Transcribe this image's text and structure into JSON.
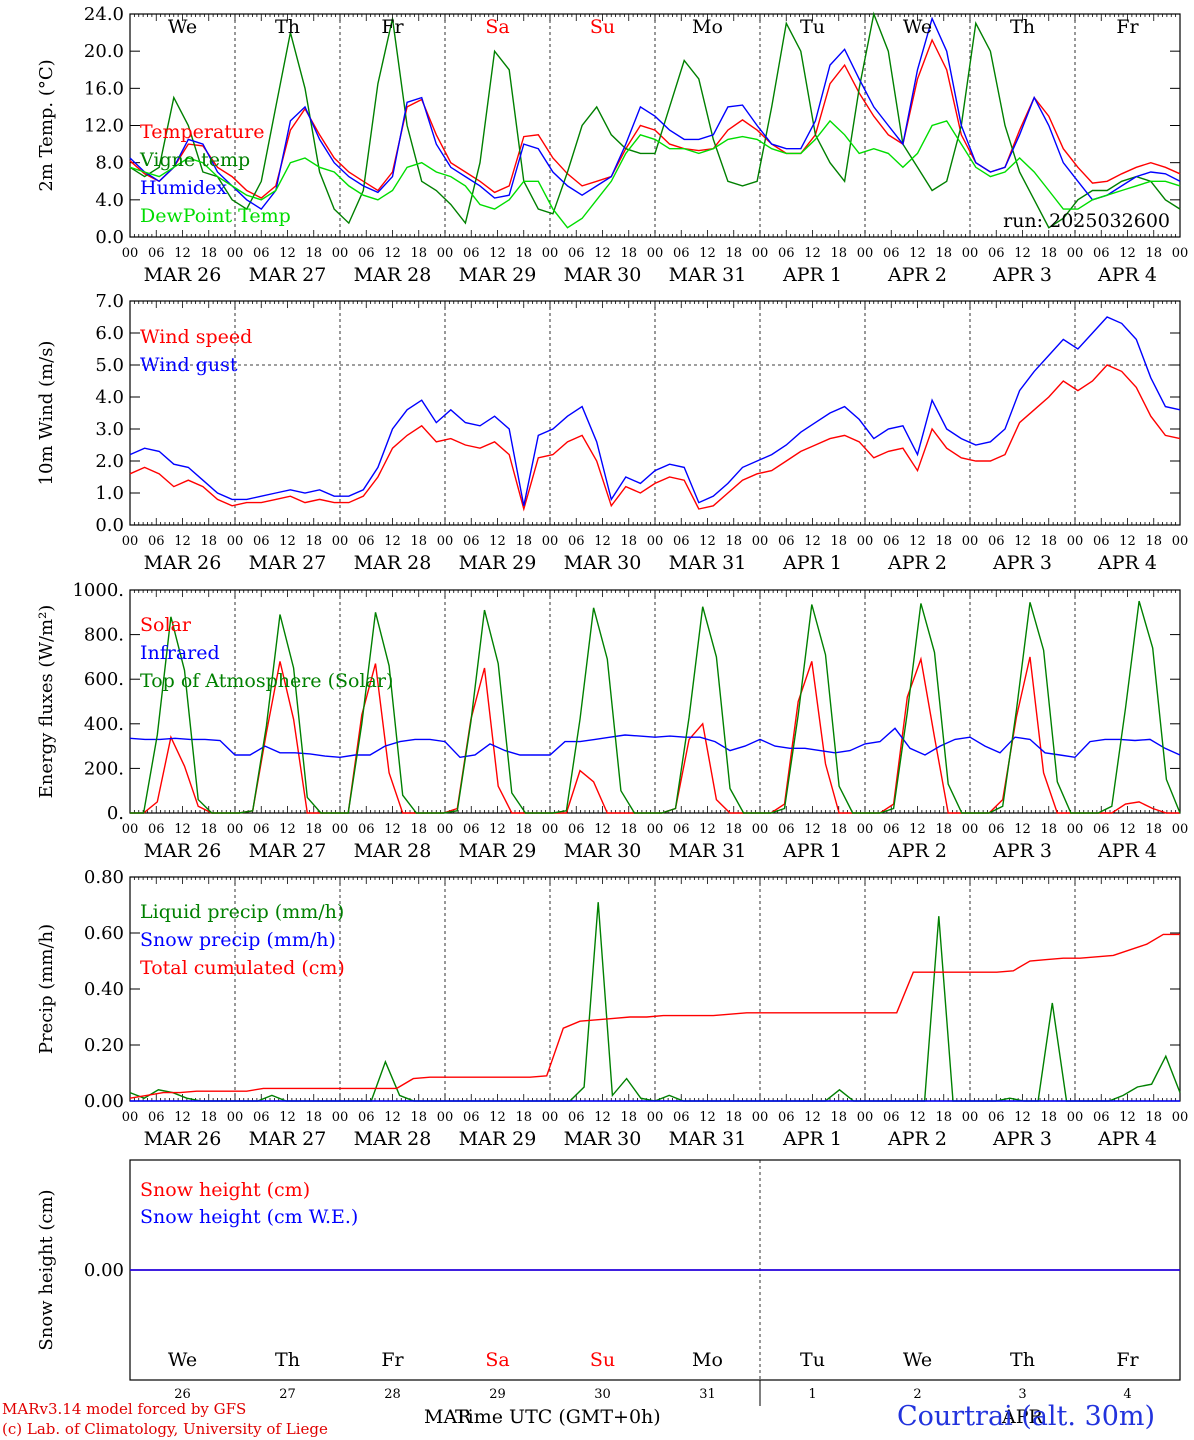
{
  "days": {
    "weekdays": [
      "We",
      "Th",
      "Fr",
      "Sa",
      "Su",
      "Mo",
      "Tu",
      "We",
      "Th",
      "Fr"
    ],
    "weekend_flags": [
      false,
      false,
      false,
      true,
      true,
      false,
      false,
      false,
      false,
      false
    ],
    "date_labels": [
      "MAR 26",
      "MAR 27",
      "MAR 28",
      "MAR 29",
      "MAR 30",
      "MAR 31",
      "APR  1",
      "APR  2",
      "APR  3",
      "APR  4"
    ],
    "day_numbers": [
      "26",
      "27",
      "28",
      "29",
      "30",
      "31",
      "1",
      "2",
      "3",
      "4"
    ],
    "hour_ticks": [
      "00",
      "06",
      "12",
      "18"
    ],
    "last_tick": "00"
  },
  "colors": {
    "red": "#ff0000",
    "blue": "#0000ff",
    "green": "#008000",
    "lightgreen": "#00dd00",
    "weekend": "#ff0000",
    "axis": "#000000",
    "station": "#2233dd"
  },
  "chart_data": [
    {
      "type": "line",
      "id": "temp",
      "ylabel": "2m Temp. (°C)",
      "ylim": [
        0,
        24
      ],
      "yticks": [
        "0.0",
        "4.0",
        "8.0",
        "12.0",
        "16.0",
        "20.0",
        "24.0"
      ],
      "x": "hour index since MAR 26 00 UTC, 3-hourly",
      "run_label": "run: 2025032600",
      "series": [
        {
          "name": "Temperature",
          "color": "red",
          "values": [
            8.2,
            6.8,
            6.0,
            7.5,
            10.0,
            9.8,
            7.5,
            6.5,
            5.0,
            4.2,
            5.5,
            11.5,
            13.8,
            11.0,
            8.5,
            7.0,
            6.0,
            5.0,
            7.0,
            14.0,
            14.8,
            11.0,
            8.0,
            7.0,
            6.0,
            4.8,
            5.5,
            10.8,
            11.0,
            8.5,
            6.8,
            5.5,
            6.0,
            6.5,
            9.5,
            12.0,
            11.5,
            10.0,
            9.5,
            9.3,
            9.5,
            11.5,
            12.6,
            11.5,
            10.0,
            9.0,
            9.0,
            11.0,
            16.5,
            18.5,
            15.5,
            13.0,
            11.0,
            10.0,
            17.0,
            21.2,
            18.0,
            11.0,
            8.0,
            7.0,
            7.5,
            11.5,
            15.0,
            13.0,
            9.5,
            7.5,
            5.8,
            6.0,
            6.8,
            7.5,
            8.0,
            7.5,
            6.8
          ]
        },
        {
          "name": "Vigne temp",
          "color": "green",
          "values": [
            7.5,
            6.5,
            7.5,
            15.0,
            12.0,
            7.0,
            6.5,
            4.0,
            3.0,
            6.0,
            14.0,
            22.0,
            16.0,
            7.0,
            3.0,
            1.5,
            5.0,
            16.5,
            23.5,
            12.0,
            6.0,
            5.0,
            3.5,
            1.5,
            8.0,
            20.0,
            18.0,
            6.0,
            3.0,
            2.5,
            7.0,
            12.0,
            14.0,
            11.0,
            9.5,
            9.0,
            9.0,
            14.0,
            19.0,
            17.0,
            10.5,
            6.0,
            5.5,
            6.0,
            14.0,
            23.0,
            20.0,
            11.0,
            8.0,
            6.0,
            16.0,
            24.0,
            20.0,
            10.0,
            7.5,
            5.0,
            6.0,
            12.0,
            23.0,
            20.0,
            12.0,
            7.0,
            4.0,
            1.0,
            2.0,
            4.0,
            5.0,
            5.0,
            6.0,
            6.5,
            6.0,
            4.0,
            3.0
          ]
        },
        {
          "name": "Humidex",
          "color": "blue",
          "values": [
            8.5,
            7.0,
            6.0,
            7.5,
            10.5,
            10.0,
            7.0,
            5.5,
            4.0,
            3.0,
            5.0,
            12.5,
            14.0,
            10.5,
            8.0,
            6.5,
            5.5,
            4.8,
            6.5,
            14.5,
            15.0,
            10.0,
            7.5,
            6.5,
            5.5,
            4.2,
            4.5,
            10.0,
            9.5,
            7.0,
            5.5,
            4.5,
            5.5,
            6.5,
            10.0,
            14.0,
            13.0,
            11.5,
            10.5,
            10.5,
            11.0,
            14.0,
            14.2,
            12.0,
            10.0,
            9.5,
            9.5,
            12.5,
            18.5,
            20.2,
            17.0,
            14.0,
            12.0,
            10.0,
            18.0,
            23.5,
            20.0,
            12.0,
            8.0,
            7.0,
            7.5,
            11.0,
            15.0,
            12.0,
            8.0,
            6.0,
            4.0,
            4.5,
            5.5,
            6.5,
            7.0,
            6.8,
            6.0
          ]
        },
        {
          "name": "DewPoint Temp",
          "color": "lightgreen",
          "values": [
            7.5,
            7.0,
            6.5,
            7.5,
            8.5,
            8.0,
            6.5,
            5.5,
            4.5,
            4.0,
            5.0,
            8.0,
            8.5,
            7.5,
            7.0,
            5.5,
            4.5,
            4.0,
            5.0,
            7.5,
            8.0,
            7.0,
            6.5,
            5.5,
            3.5,
            3.0,
            4.0,
            6.0,
            6.0,
            3.0,
            1.0,
            2.0,
            4.0,
            6.0,
            9.0,
            11.0,
            10.5,
            9.5,
            9.5,
            9.0,
            9.5,
            10.5,
            10.8,
            10.5,
            9.5,
            9.0,
            9.0,
            10.5,
            12.5,
            11.0,
            9.0,
            9.5,
            9.0,
            7.5,
            9.0,
            12.0,
            12.5,
            10.0,
            7.5,
            6.5,
            7.0,
            8.5,
            7.0,
            5.0,
            3.0,
            3.0,
            4.0,
            4.5,
            5.0,
            5.5,
            6.0,
            6.0,
            5.5
          ]
        }
      ]
    },
    {
      "type": "line",
      "id": "wind",
      "ylabel": "10m Wind (m/s)",
      "ylim": [
        0,
        7
      ],
      "yticks": [
        "0.0",
        "1.0",
        "2.0",
        "3.0",
        "4.0",
        "5.0",
        "6.0",
        "7.0"
      ],
      "ref_line": 5.0,
      "series": [
        {
          "name": "Wind speed",
          "color": "red",
          "values": [
            1.6,
            1.8,
            1.6,
            1.2,
            1.4,
            1.2,
            0.8,
            0.6,
            0.7,
            0.7,
            0.8,
            0.9,
            0.7,
            0.8,
            0.7,
            0.7,
            0.9,
            1.5,
            2.4,
            2.8,
            3.1,
            2.6,
            2.7,
            2.5,
            2.4,
            2.6,
            2.2,
            0.5,
            2.1,
            2.2,
            2.6,
            2.8,
            2.0,
            0.6,
            1.2,
            1.0,
            1.3,
            1.5,
            1.4,
            0.5,
            0.6,
            1.0,
            1.4,
            1.6,
            1.7,
            2.0,
            2.3,
            2.5,
            2.7,
            2.8,
            2.6,
            2.1,
            2.3,
            2.4,
            1.7,
            3.0,
            2.4,
            2.1,
            2.0,
            2.0,
            2.2,
            3.2,
            3.6,
            4.0,
            4.5,
            4.2,
            4.5,
            5.0,
            4.8,
            4.3,
            3.4,
            2.8,
            2.7
          ]
        },
        {
          "name": "Wind gust",
          "color": "blue",
          "values": [
            2.2,
            2.4,
            2.3,
            1.9,
            1.8,
            1.4,
            1.0,
            0.8,
            0.8,
            0.9,
            1.0,
            1.1,
            1.0,
            1.1,
            0.9,
            0.9,
            1.1,
            1.8,
            3.0,
            3.6,
            3.9,
            3.2,
            3.6,
            3.2,
            3.1,
            3.4,
            3.0,
            0.6,
            2.8,
            3.0,
            3.4,
            3.7,
            2.6,
            0.8,
            1.5,
            1.3,
            1.7,
            1.9,
            1.8,
            0.7,
            0.9,
            1.3,
            1.8,
            2.0,
            2.2,
            2.5,
            2.9,
            3.2,
            3.5,
            3.7,
            3.3,
            2.7,
            3.0,
            3.1,
            2.2,
            3.9,
            3.0,
            2.7,
            2.5,
            2.6,
            3.0,
            4.2,
            4.8,
            5.3,
            5.8,
            5.5,
            6.0,
            6.5,
            6.3,
            5.8,
            4.6,
            3.7,
            3.6
          ]
        }
      ]
    },
    {
      "type": "line",
      "id": "energy",
      "ylabel": "Energy fluxes (W/m²)",
      "ylim": [
        0,
        1000
      ],
      "yticks": [
        "0.",
        "200.",
        "400.",
        "600.",
        "800.",
        "1000."
      ],
      "series": [
        {
          "name": "Solar",
          "color": "red",
          "values": [
            0,
            0,
            50,
            340,
            210,
            30,
            0,
            0,
            0,
            10,
            360,
            680,
            420,
            0,
            0,
            0,
            0,
            440,
            670,
            180,
            0,
            0,
            0,
            0,
            20,
            420,
            650,
            120,
            0,
            0,
            0,
            0,
            0,
            190,
            140,
            0,
            0,
            0,
            0,
            0,
            20,
            330,
            400,
            60,
            0,
            0,
            0,
            0,
            40,
            500,
            680,
            220,
            0,
            0,
            0,
            0,
            40,
            520,
            690,
            340,
            0,
            0,
            0,
            0,
            60,
            430,
            700,
            180,
            0,
            0,
            0,
            0,
            0,
            40,
            50,
            20,
            0,
            0
          ]
        },
        {
          "name": "Infrared",
          "color": "blue",
          "values": [
            335,
            330,
            330,
            335,
            330,
            330,
            325,
            260,
            260,
            300,
            270,
            270,
            265,
            255,
            250,
            260,
            260,
            300,
            320,
            330,
            330,
            320,
            250,
            260,
            310,
            280,
            260,
            260,
            260,
            320,
            320,
            330,
            340,
            350,
            345,
            340,
            345,
            340,
            340,
            320,
            280,
            300,
            330,
            300,
            290,
            290,
            280,
            270,
            280,
            310,
            320,
            380,
            290,
            260,
            300,
            330,
            340,
            300,
            270,
            340,
            330,
            270,
            260,
            250,
            320,
            330,
            330,
            325,
            330,
            290,
            260
          ]
        },
        {
          "name": "Top of Atmosphere (Solar)",
          "color": "green",
          "values": [
            0,
            0,
            350,
            880,
            640,
            60,
            0,
            0,
            0,
            10,
            390,
            890,
            650,
            70,
            0,
            0,
            0,
            400,
            900,
            660,
            80,
            0,
            0,
            0,
            10,
            410,
            910,
            670,
            90,
            0,
            0,
            0,
            10,
            420,
            920,
            690,
            100,
            0,
            0,
            0,
            20,
            430,
            925,
            700,
            110,
            0,
            0,
            0,
            20,
            440,
            935,
            710,
            120,
            0,
            0,
            0,
            20,
            450,
            940,
            720,
            130,
            0,
            0,
            0,
            30,
            460,
            945,
            730,
            140,
            0,
            0,
            0,
            30,
            470,
            950,
            740,
            150,
            0
          ]
        }
      ]
    },
    {
      "type": "line",
      "id": "precip",
      "ylabel": "Precip (mm/h)",
      "ylim": [
        0,
        0.8
      ],
      "yticks": [
        "0.00",
        "0.20",
        "0.40",
        "0.60",
        "0.80"
      ],
      "series": [
        {
          "name": "Liquid precip (mm/h)",
          "color": "green",
          "values": [
            0.03,
            0.01,
            0.04,
            0.03,
            0.01,
            0.0,
            0.0,
            0.0,
            0.0,
            0.0,
            0.02,
            0.0,
            0.0,
            0.0,
            0.0,
            0.0,
            0.0,
            0.0,
            0.14,
            0.02,
            0.0,
            0.0,
            0.0,
            0.0,
            0.0,
            0.0,
            0.0,
            0.0,
            0.0,
            0.0,
            0.0,
            0.0,
            0.05,
            0.71,
            0.02,
            0.08,
            0.01,
            0.0,
            0.02,
            0.0,
            0.0,
            0.0,
            0.0,
            0.0,
            0.0,
            0.0,
            0.0,
            0.0,
            0.0,
            0.0,
            0.04,
            0.0,
            0.0,
            0.0,
            0.0,
            0.0,
            0.0,
            0.66,
            0.0,
            0.0,
            0.0,
            0.0,
            0.01,
            0.0,
            0.0,
            0.35,
            0.0,
            0.0,
            0.0,
            0.0,
            0.02,
            0.05,
            0.06,
            0.16,
            0.03
          ]
        },
        {
          "name": "Snow precip (mm/h)",
          "color": "blue",
          "values": [
            0,
            0,
            0,
            0,
            0,
            0,
            0,
            0,
            0,
            0,
            0,
            0,
            0,
            0,
            0,
            0,
            0,
            0,
            0,
            0,
            0,
            0,
            0,
            0,
            0,
            0,
            0,
            0,
            0,
            0,
            0,
            0,
            0,
            0,
            0,
            0,
            0,
            0,
            0,
            0,
            0,
            0,
            0,
            0,
            0,
            0,
            0,
            0,
            0,
            0,
            0,
            0,
            0,
            0,
            0,
            0,
            0,
            0,
            0,
            0,
            0,
            0,
            0,
            0,
            0,
            0,
            0,
            0,
            0,
            0,
            0,
            0,
            0,
            0,
            0
          ]
        },
        {
          "name": "Total cumulated (cm)",
          "color": "red",
          "values": [
            0.01,
            0.02,
            0.03,
            0.03,
            0.035,
            0.035,
            0.035,
            0.035,
            0.045,
            0.045,
            0.045,
            0.045,
            0.045,
            0.045,
            0.045,
            0.045,
            0.045,
            0.08,
            0.085,
            0.085,
            0.085,
            0.085,
            0.085,
            0.085,
            0.085,
            0.09,
            0.26,
            0.285,
            0.29,
            0.295,
            0.3,
            0.3,
            0.305,
            0.305,
            0.305,
            0.305,
            0.31,
            0.315,
            0.315,
            0.315,
            0.315,
            0.315,
            0.315,
            0.315,
            0.315,
            0.315,
            0.315,
            0.46,
            0.46,
            0.46,
            0.46,
            0.46,
            0.46,
            0.465,
            0.5,
            0.505,
            0.51,
            0.51,
            0.515,
            0.52,
            0.54,
            0.56,
            0.595,
            0.595
          ]
        }
      ]
    },
    {
      "type": "line",
      "id": "snow",
      "ylabel": "Snow height (cm)",
      "yticks": [
        "0.00"
      ],
      "series": [
        {
          "name": "Snow height (cm)",
          "color": "red",
          "values": [
            0,
            0
          ]
        },
        {
          "name": "Snow height (cm W.E.)",
          "color": "blue",
          "values": [
            0,
            0
          ]
        }
      ]
    }
  ],
  "footer": {
    "credit_line1": "MARv3.14 model forced by GFS",
    "credit_line2": "(c) Lab. of Climatology, University of Liege",
    "xlabel": "Time UTC (GMT+0h)",
    "month_a": "MAR",
    "month_b": "APR",
    "station": "Courtrai (alt. 30m)"
  }
}
